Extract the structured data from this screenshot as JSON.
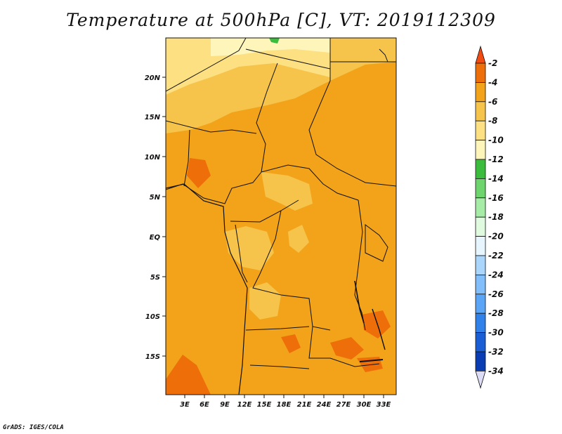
{
  "title": "Temperature at 500hPa [C], VT: 2019112309",
  "credit": "GrADS: IGES/COLA",
  "map": {
    "lat_labels": [
      "20N",
      "15N",
      "10N",
      "5N",
      "EQ",
      "5S",
      "10S",
      "15S"
    ],
    "lon_labels": [
      "3E",
      "6E",
      "9E",
      "12E",
      "15E",
      "18E",
      "21E",
      "24E",
      "27E",
      "30E",
      "33E"
    ]
  },
  "colorbar": {
    "labels": [
      "-2",
      "-4",
      "-6",
      "-8",
      "-10",
      "-12",
      "-14",
      "-16",
      "-18",
      "-20",
      "-22",
      "-24",
      "-26",
      "-28",
      "-30",
      "-32",
      "-34"
    ],
    "colors": [
      "#f24b12",
      "#ee6f0a",
      "#f2a31a",
      "#f6c44a",
      "#fde082",
      "#fef5bb",
      "#3cbc3c",
      "#6ed56e",
      "#a6eba6",
      "#dffadf",
      "#e6f5fe",
      "#aad6fc",
      "#82befa",
      "#5aa5f5",
      "#3082ea",
      "#1a5ed6",
      "#0a3cb4",
      "#06156e",
      "#dcdcf6"
    ]
  },
  "chart_data": {
    "type": "heatmap",
    "title": "Temperature at 500hPa [C], VT: 2019112309",
    "variable": "Temperature at 500hPa",
    "units": "C",
    "valid_time": "2019112309",
    "lat_ticks": [
      "20N",
      "15N",
      "10N",
      "5N",
      "EQ",
      "5S",
      "10S",
      "15S"
    ],
    "lon_ticks": [
      "3E",
      "6E",
      "9E",
      "12E",
      "15E",
      "18E",
      "21E",
      "24E",
      "27E",
      "30E",
      "33E"
    ],
    "contour_levels": [
      -2,
      -4,
      -6,
      -8,
      -10,
      -12,
      -14,
      -16,
      -18,
      -20,
      -22,
      -24,
      -26,
      -28,
      -30,
      -32,
      -34
    ]
  }
}
